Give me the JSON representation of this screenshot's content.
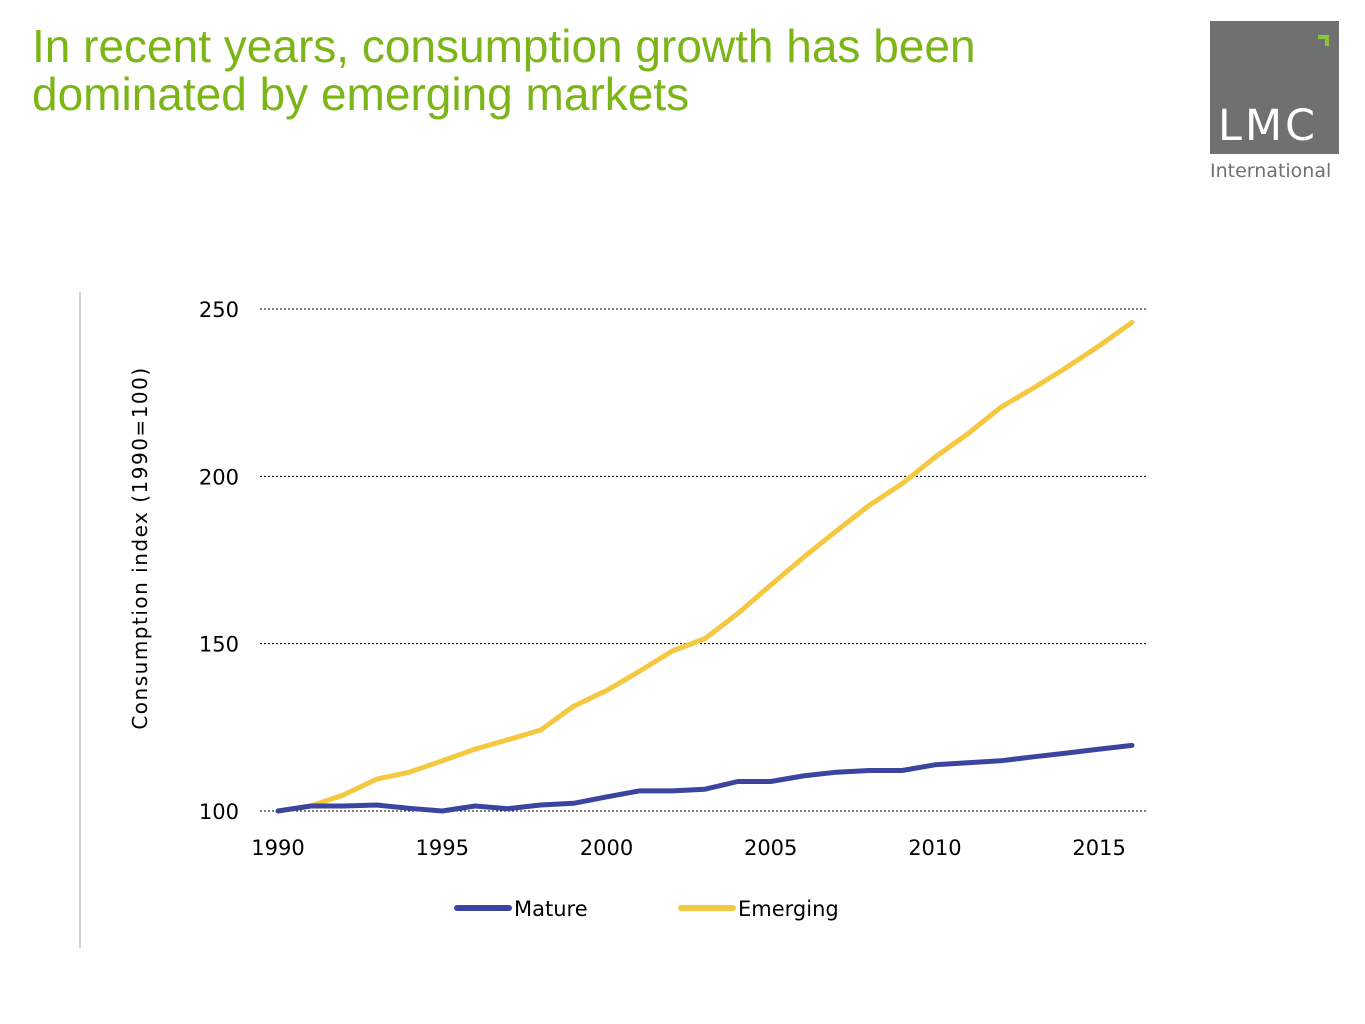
{
  "slide": {
    "title": "In recent years, consumption growth has been dominated by emerging markets"
  },
  "logo": {
    "text": "LMC",
    "subtext": "International",
    "box_color": "#6e7170",
    "accent_color": "#8cc63f"
  },
  "colors": {
    "title": "#7cb518",
    "mature": "#3b45a0",
    "emerging": "#f5c842"
  },
  "chart_data": {
    "type": "line",
    "title": "",
    "xlabel": "",
    "ylabel": "Consumption index (1990=100)",
    "xlim": [
      1990,
      2016
    ],
    "ylim": [
      100,
      250
    ],
    "x_ticks": [
      1990,
      1995,
      2000,
      2005,
      2010,
      2015
    ],
    "y_ticks": [
      100,
      150,
      200,
      250
    ],
    "grid": "horizontal dotted",
    "legend_position": "bottom",
    "x": [
      1990,
      1991,
      1992,
      1993,
      1994,
      1995,
      1996,
      1997,
      1998,
      1999,
      2000,
      2001,
      2002,
      2003,
      2004,
      2005,
      2006,
      2007,
      2008,
      2009,
      2010,
      2011,
      2012,
      2013,
      2014,
      2015,
      2016
    ],
    "series": [
      {
        "name": "Mature",
        "color": "#3b45a0",
        "values": [
          100,
          101.5,
          101.5,
          101.8,
          100.8,
          100,
          101.5,
          100.7,
          101.8,
          102.3,
          104.2,
          106,
          106,
          106.5,
          108.8,
          108.8,
          110.5,
          111.6,
          112.1,
          112.1,
          113.8,
          114.4,
          115,
          116.2,
          117.3,
          118.5,
          119.6
        ]
      },
      {
        "name": "Emerging",
        "color": "#f5c842",
        "values": [
          100,
          101.5,
          104.8,
          109.5,
          111.6,
          115,
          118.5,
          121.3,
          124.2,
          131.3,
          136,
          141.7,
          147.8,
          151.5,
          159,
          167.5,
          175.8,
          183.7,
          191.3,
          197.8,
          205.7,
          212.7,
          220.6,
          226.4,
          232.5,
          239,
          246
        ]
      }
    ]
  }
}
